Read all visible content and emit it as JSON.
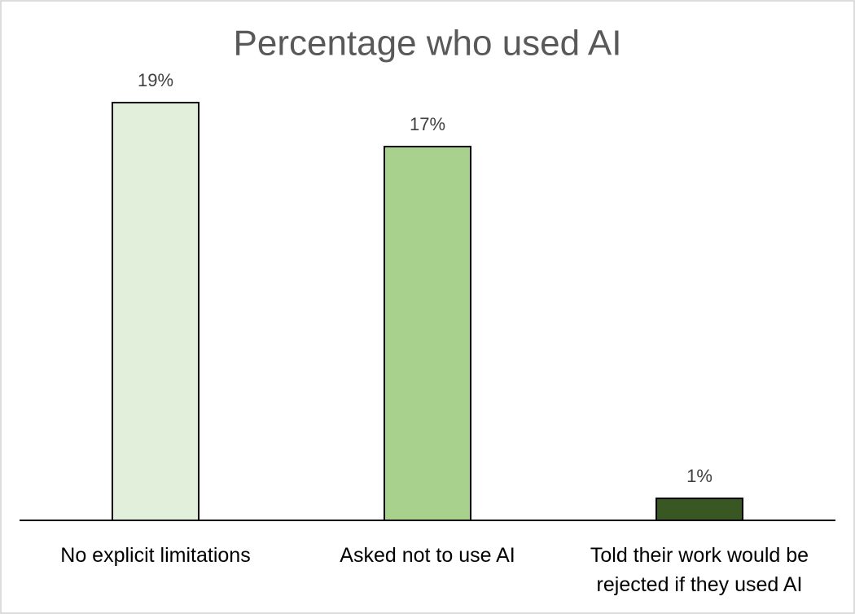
{
  "chart_data": {
    "type": "bar",
    "title": "Percentage who used AI",
    "categories": [
      "No explicit limitations",
      "Asked not to use AI",
      "Told their work would be rejected if they used AI"
    ],
    "values": [
      19,
      17,
      1
    ],
    "value_labels": [
      "19%",
      "17%",
      "1%"
    ],
    "colors": [
      "#e2efda",
      "#a9d18e",
      "#385723"
    ]
  }
}
